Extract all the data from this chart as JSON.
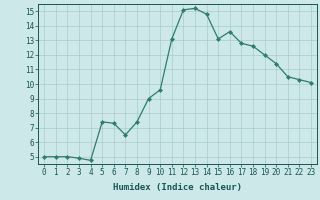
{
  "x": [
    0,
    1,
    2,
    3,
    4,
    5,
    6,
    7,
    8,
    9,
    10,
    11,
    12,
    13,
    14,
    15,
    16,
    17,
    18,
    19,
    20,
    21,
    22,
    23
  ],
  "y": [
    5.0,
    5.0,
    5.0,
    4.9,
    4.75,
    7.4,
    7.3,
    6.5,
    7.4,
    9.0,
    9.6,
    13.1,
    15.1,
    15.2,
    14.8,
    13.1,
    13.6,
    12.8,
    12.6,
    12.0,
    11.4,
    10.5,
    10.3,
    10.1
  ],
  "line_color": "#2e7d6e",
  "marker": "D",
  "marker_size": 2,
  "bg_color": "#cce8e8",
  "grid_color": "#aacccc",
  "xlabel": "Humidex (Indice chaleur)",
  "xlim": [
    -0.5,
    23.5
  ],
  "ylim": [
    4.5,
    15.5
  ],
  "yticks": [
    5,
    6,
    7,
    8,
    9,
    10,
    11,
    12,
    13,
    14,
    15
  ],
  "xticks": [
    0,
    1,
    2,
    3,
    4,
    5,
    6,
    7,
    8,
    9,
    10,
    11,
    12,
    13,
    14,
    15,
    16,
    17,
    18,
    19,
    20,
    21,
    22,
    23
  ],
  "tick_color": "#1a5555",
  "label_fontsize": 6.5,
  "tick_fontsize": 5.5
}
